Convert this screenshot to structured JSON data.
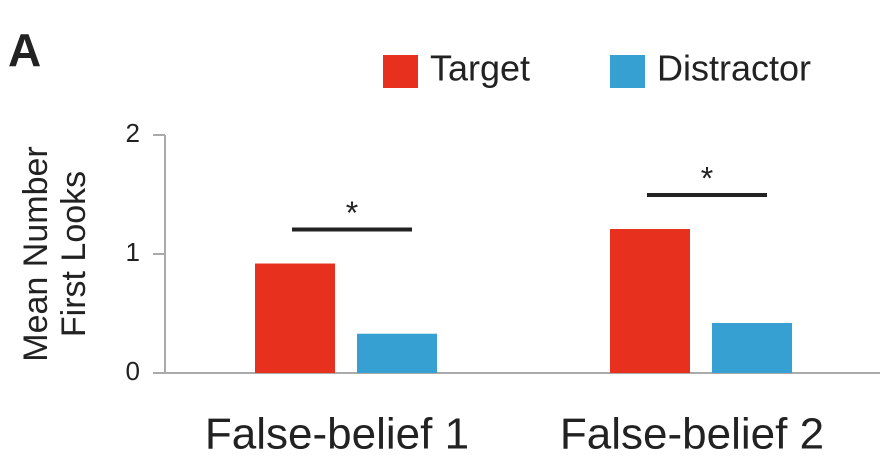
{
  "chart_data": {
    "type": "bar",
    "panel_label": "A",
    "ylabel_lines": [
      "Mean Number",
      "First Looks"
    ],
    "categories": [
      "False-belief 1",
      "False-belief 2"
    ],
    "series": [
      {
        "name": "Target",
        "color": "#e8301f",
        "values": [
          0.92,
          1.21
        ]
      },
      {
        "name": "Distractor",
        "color": "#37a0d2",
        "values": [
          0.33,
          0.42
        ]
      }
    ],
    "annotations": [
      "*",
      "*"
    ],
    "ylim": [
      0,
      2
    ],
    "yticks": [
      0,
      1,
      2
    ]
  }
}
